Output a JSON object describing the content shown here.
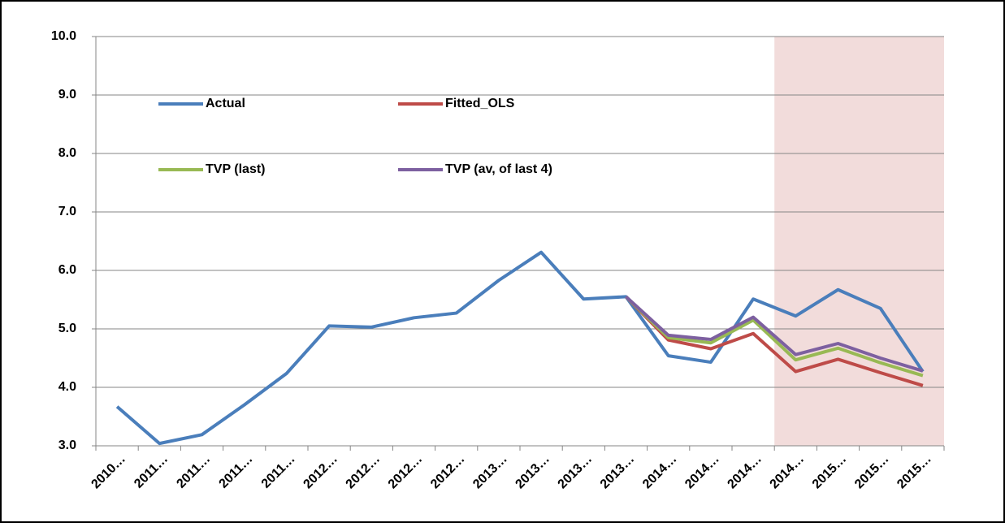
{
  "chart_data": {
    "type": "line",
    "categories": [
      "2010…",
      "2011…",
      "2011…",
      "2011…",
      "2011…",
      "2012…",
      "2012…",
      "2012…",
      "2012…",
      "2013…",
      "2013…",
      "2013…",
      "2013…",
      "2014…",
      "2014…",
      "2014…",
      "2014…",
      "2015…",
      "2015…",
      "2015…"
    ],
    "series": [
      {
        "name": "Actual",
        "color": "#4a7ebb",
        "values": [
          3.67,
          3.04,
          3.19,
          3.7,
          4.24,
          5.05,
          5.03,
          5.19,
          5.27,
          5.83,
          6.31,
          5.51,
          5.55,
          4.54,
          4.43,
          5.51,
          5.22,
          5.67,
          5.35,
          4.27
        ]
      },
      {
        "name": "Fitted_OLS",
        "color": "#be4b48",
        "values": [
          null,
          null,
          null,
          null,
          null,
          null,
          null,
          null,
          null,
          null,
          null,
          null,
          5.55,
          4.81,
          4.66,
          4.92,
          4.27,
          4.48,
          4.25,
          4.03
        ]
      },
      {
        "name": "TVP (last)",
        "color": "#98b954",
        "values": [
          null,
          null,
          null,
          null,
          null,
          null,
          null,
          null,
          null,
          null,
          null,
          null,
          5.55,
          4.85,
          4.76,
          5.15,
          4.47,
          4.67,
          4.42,
          4.2
        ]
      },
      {
        "name": "TVP (av, of last 4)",
        "color": "#7d60a0",
        "values": [
          null,
          null,
          null,
          null,
          null,
          null,
          null,
          null,
          null,
          null,
          null,
          null,
          5.55,
          4.89,
          4.82,
          5.2,
          4.56,
          4.75,
          4.5,
          4.28
        ]
      }
    ],
    "ylim": [
      3,
      10
    ],
    "yticks": [
      {
        "value": 3,
        "label": "3.0"
      },
      {
        "value": 4,
        "label": "4.0"
      },
      {
        "value": 5,
        "label": "5.0"
      },
      {
        "value": 6,
        "label": "6.0"
      },
      {
        "value": 7,
        "label": "7.0"
      },
      {
        "value": 8,
        "label": "8.0"
      },
      {
        "value": 9,
        "label": "9.0"
      },
      {
        "value": 10,
        "label": "10.0"
      }
    ],
    "grid": true,
    "shade": {
      "from": 16,
      "to": 19,
      "color": "#f2dcdb"
    }
  }
}
